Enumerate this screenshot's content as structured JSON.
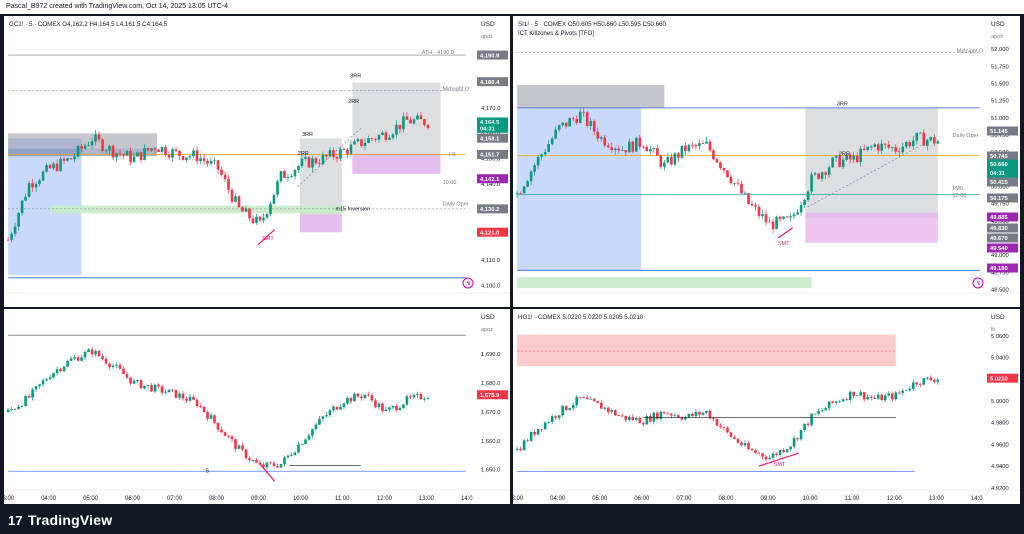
{
  "header": {
    "title": "Pascal_B972 created with TradingView.com, Oct 14, 2025 13:05 UTC-4"
  },
  "footer": {
    "brand": "TradingView",
    "logo_mark": "17"
  },
  "colors": {
    "up": "#089981",
    "down": "#f23645",
    "level_orange": "#f7a600",
    "level_blue": "#2962ff",
    "zone_blue": "#aac4fb",
    "zone_gray": "#b2b5be",
    "zone_pink": "#e7b6ee",
    "zone_green": "#c8ecc9",
    "zone_red": "#fbc5c8",
    "label_purple": "#9c27b0",
    "label_gray": "#787b86",
    "label_red": "#f23645",
    "label_green": "#089981"
  },
  "panes": {
    "gc": {
      "legend": "GC1! · 5 · COMEX  O4,162.2  H4,164.5  L4,161.5  C4,164.5",
      "unit": "USD",
      "currency_note": "apoz",
      "ticks": [
        "4,190.0",
        "4,180.0",
        "4,170.0",
        "4,160.0",
        "4,150.0",
        "4,140.0",
        "4,130.0",
        "4,120.0",
        "4,110.0",
        "4,100.0"
      ],
      "price_labels": [
        {
          "text": "4,190.9",
          "color": "#787b86"
        },
        {
          "text": "4,180.4",
          "color": "#787b86"
        },
        {
          "text": "4,164.5",
          "color": "#089981"
        },
        {
          "text": "04:31",
          "color": "#089981"
        },
        {
          "text": "4,158.1",
          "color": "#787b86"
        },
        {
          "text": "4,151.7",
          "color": "#787b86"
        },
        {
          "text": "4,142.1",
          "color": "#9c27b0"
        },
        {
          "text": "4,130.2",
          "color": "#787b86"
        },
        {
          "text": "4,121.0",
          "color": "#f23645"
        }
      ],
      "annotations": [
        "ATH - 4190.9",
        "Midnight O",
        "3RR",
        "2RR",
        "3RR",
        "2RR",
        "H1",
        "10:00",
        "Daily Oper",
        "m15 Inversion",
        "SMT"
      ]
    },
    "si": {
      "legend": "SI1! · 5 · COMEX  O50.605  H50.660  L50.595  C50.660",
      "sublegend": "ICT Killzones & Pivots [TFO]",
      "unit": "USD",
      "currency_note": "apoz",
      "ticks": [
        "52.000",
        "51.750",
        "51.500",
        "51.250",
        "51.000",
        "50.750",
        "50.500",
        "50.250",
        "50.000",
        "49.750",
        "49.500",
        "49.250",
        "49.000",
        "48.750",
        "48.500"
      ],
      "price_labels": [
        {
          "text": "51.145",
          "color": "#787b86"
        },
        {
          "text": "50.745",
          "color": "#787b86"
        },
        {
          "text": "50.660",
          "color": "#089981"
        },
        {
          "text": "04:31",
          "color": "#089981"
        },
        {
          "text": "50.415",
          "color": "#787b86"
        },
        {
          "text": "50.175",
          "color": "#787b86"
        },
        {
          "text": "49.885",
          "color": "#9c27b0"
        },
        {
          "text": "49.830",
          "color": "#787b86"
        },
        {
          "text": "49.670",
          "color": "#787b86"
        },
        {
          "text": "49.540",
          "color": "#9c27b0"
        },
        {
          "text": "49.180",
          "color": "#9c27b0"
        }
      ],
      "annotations": [
        "Midnight O",
        "3RR",
        "2RR",
        "Daily Oper",
        "PWL",
        "10:00",
        "SMT"
      ]
    },
    "pa": {
      "legend": "",
      "unit": "USD",
      "currency_note": "apoz",
      "ticks": [
        "1,690.0",
        "1,680.0",
        "1,670.0",
        "1,660.0",
        "1,650.0"
      ],
      "price_labels": [
        {
          "text": "1,675.9",
          "color": "#f23645"
        }
      ],
      "annotations": [
        "S"
      ]
    },
    "hg": {
      "legend": "HG1! · COMEX  5.0220  5.0220  5.0205  5.0210",
      "unit": "USD",
      "currency_note": "lb",
      "ticks": [
        "5.0600",
        "5.0400",
        "5.0200",
        "5.0000",
        "4.9800",
        "4.9600",
        "4.9400",
        "4.9200"
      ],
      "price_labels": [
        {
          "text": "5.0210",
          "color": "#f23645"
        }
      ],
      "annotations": [
        "SMT"
      ]
    }
  },
  "time_axis": {
    "left": [
      "03:00",
      "04:00",
      "05:00",
      "06:00",
      "07:00",
      "08:00",
      "09:00",
      "10:00",
      "11:00",
      "12:00",
      "13:00",
      "14:0"
    ],
    "right": [
      "03:00",
      "04:00",
      "05:00",
      "06:00",
      "07:00",
      "08:00",
      "09:00",
      "10:00",
      "11:00",
      "12:00",
      "13:00",
      "14:0"
    ]
  },
  "chart_data": [
    {
      "type": "candlestick",
      "title": "GC1! · 5 · COMEX",
      "ylabel": "USD",
      "ylim": [
        4097,
        4200
      ],
      "series": [
        {
          "name": "GC1!",
          "close_path": [
            [
              "03:00",
              4118
            ],
            [
              "03:30",
              4140
            ],
            [
              "04:00",
              4146
            ],
            [
              "04:30",
              4150
            ],
            [
              "05:00",
              4158
            ],
            [
              "05:30",
              4153
            ],
            [
              "06:00",
              4150
            ],
            [
              "06:30",
              4155
            ],
            [
              "07:00",
              4152
            ],
            [
              "07:30",
              4151
            ],
            [
              "08:00",
              4146
            ],
            [
              "08:30",
              4130
            ],
            [
              "09:00",
              4124
            ],
            [
              "09:30",
              4143
            ],
            [
              "10:00",
              4148
            ],
            [
              "10:30",
              4150
            ],
            [
              "11:00",
              4153
            ],
            [
              "11:30",
              4157
            ],
            [
              "12:00",
              4160
            ],
            [
              "12:30",
              4165
            ],
            [
              "13:00",
              4164.5
            ]
          ]
        }
      ]
    },
    {
      "type": "candlestick",
      "title": "SI1! · 5 · COMEX",
      "ylabel": "USD",
      "ylim": [
        48.45,
        52.25
      ],
      "series": [
        {
          "name": "SI1!",
          "close_path": [
            [
              "03:00",
              49.9
            ],
            [
              "03:30",
              50.4
            ],
            [
              "04:00",
              50.85
            ],
            [
              "04:30",
              51.05
            ],
            [
              "05:00",
              50.7
            ],
            [
              "05:30",
              50.55
            ],
            [
              "06:00",
              50.65
            ],
            [
              "06:30",
              50.3
            ],
            [
              "07:00",
              50.55
            ],
            [
              "07:30",
              50.6
            ],
            [
              "08:00",
              50.2
            ],
            [
              "08:30",
              49.75
            ],
            [
              "09:00",
              49.45
            ],
            [
              "09:30",
              49.5
            ],
            [
              "10:00",
              50.1
            ],
            [
              "10:30",
              50.35
            ],
            [
              "11:00",
              50.4
            ],
            [
              "11:30",
              50.6
            ],
            [
              "12:00",
              50.55
            ],
            [
              "12:30",
              50.7
            ],
            [
              "13:00",
              50.66
            ]
          ]
        }
      ]
    },
    {
      "type": "candlestick",
      "ylabel": "USD",
      "ylim": [
        1643,
        1700
      ],
      "series": [
        {
          "name": "pane3",
          "close_path": [
            [
              "03:00",
              1670
            ],
            [
              "03:30",
              1675
            ],
            [
              "04:00",
              1683
            ],
            [
              "04:30",
              1688
            ],
            [
              "05:00",
              1691
            ],
            [
              "05:30",
              1686
            ],
            [
              "06:00",
              1680
            ],
            [
              "06:30",
              1678
            ],
            [
              "07:00",
              1676
            ],
            [
              "07:30",
              1673
            ],
            [
              "08:00",
              1665
            ],
            [
              "08:30",
              1657
            ],
            [
              "09:00",
              1651
            ],
            [
              "09:30",
              1652
            ],
            [
              "10:00",
              1660
            ],
            [
              "10:30",
              1668
            ],
            [
              "11:00",
              1674
            ],
            [
              "11:30",
              1676
            ],
            [
              "12:00",
              1670
            ],
            [
              "12:30",
              1674
            ],
            [
              "13:00",
              1675.9
            ]
          ]
        }
      ]
    },
    {
      "type": "candlestick",
      "title": "HG1! · COMEX",
      "ylabel": "USD",
      "ylim": [
        4.918,
        5.07
      ],
      "series": [
        {
          "name": "HG1!",
          "close_path": [
            [
              "03:00",
              4.955
            ],
            [
              "03:30",
              4.975
            ],
            [
              "04:00",
              4.99
            ],
            [
              "04:30",
              5.002
            ],
            [
              "05:00",
              4.995
            ],
            [
              "05:30",
              4.985
            ],
            [
              "06:00",
              4.982
            ],
            [
              "06:30",
              4.99
            ],
            [
              "07:00",
              4.985
            ],
            [
              "07:30",
              4.99
            ],
            [
              "08:00",
              4.97
            ],
            [
              "08:30",
              4.955
            ],
            [
              "09:00",
              4.948
            ],
            [
              "09:30",
              4.96
            ],
            [
              "10:00",
              4.985
            ],
            [
              "10:30",
              4.998
            ],
            [
              "11:00",
              5.008
            ],
            [
              "11:30",
              5.002
            ],
            [
              "12:00",
              5.005
            ],
            [
              "12:30",
              5.018
            ],
            [
              "13:00",
              5.021
            ]
          ]
        }
      ]
    }
  ]
}
